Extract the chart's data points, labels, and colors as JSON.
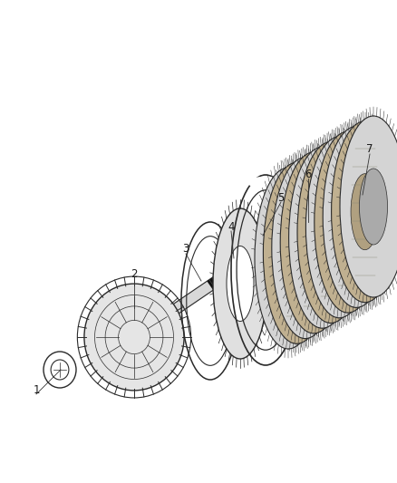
{
  "background_color": "#ffffff",
  "line_color": "#2a2a2a",
  "figsize": [
    4.38,
    5.33
  ],
  "dpi": 100,
  "label_fontsize": 8.5
}
